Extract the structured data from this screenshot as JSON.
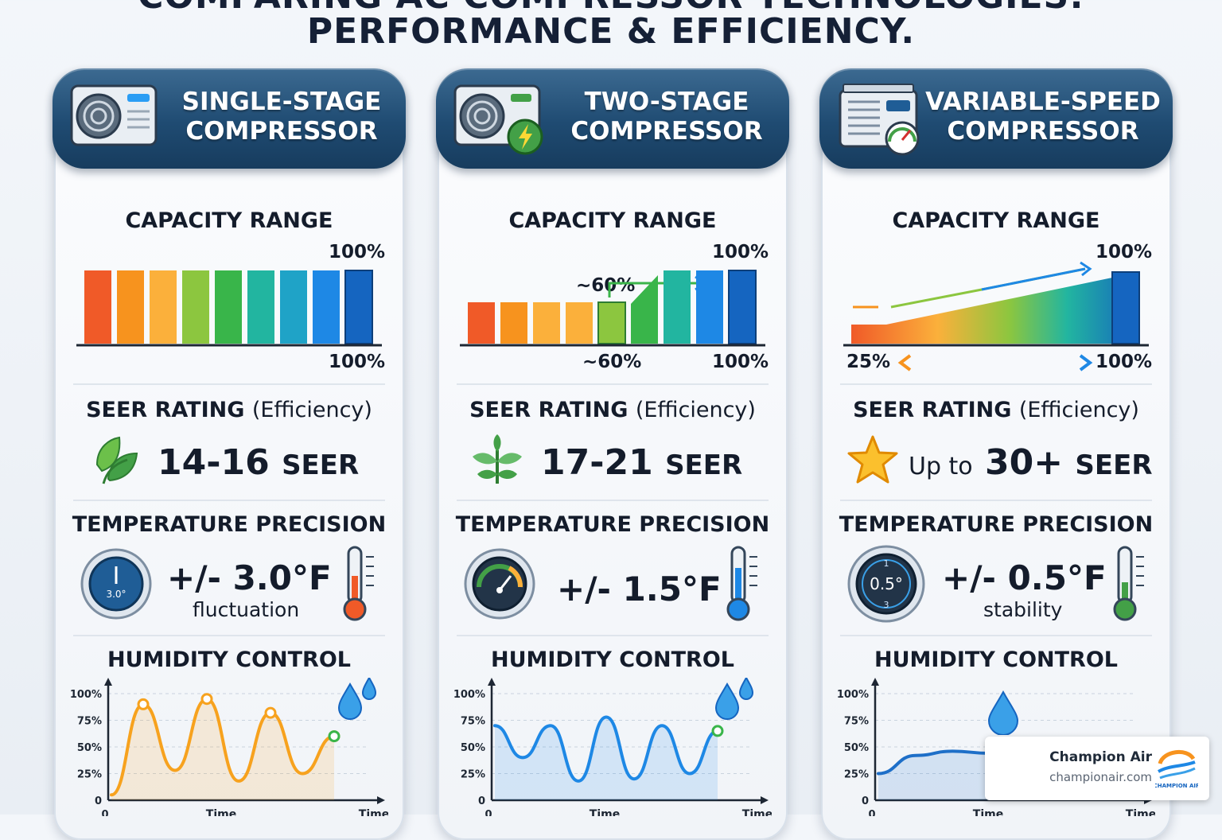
{
  "page": {
    "title_line1": "COMPARING AC COMPRESSOR TECHNOLOGIES:",
    "title_line2": "PERFORMANCE & EFFICIENCY."
  },
  "sections": {
    "capacity": "CAPACITY RANGE",
    "seer_bold": "SEER RATING",
    "seer_light": "(Efficiency)",
    "temperature": "TEMPERATURE PRECISION",
    "humidity": "HUMIDITY CONTROL"
  },
  "chart_axis": {
    "y_ticks": [
      "100%",
      "75%",
      "50%",
      "25%",
      "0"
    ],
    "x_start": "0",
    "x_mid": "Time",
    "x_end": "Time"
  },
  "cards": [
    {
      "title_line1": "SINGLE-STAGE",
      "title_line2": "COMPRESSOR",
      "capacity_top": "100%",
      "capacity_bottom": "100%",
      "seer_value": "14-16",
      "seer_unit": "SEER",
      "temp_value": "+/- 3.0°F",
      "temp_sub": "fluctuation",
      "gauge_label": "3.0°"
    },
    {
      "title_line1": "TWO-STAGE",
      "title_line2": "COMPRESSOR",
      "capacity_top": "100%",
      "capacity_mid": "~60%",
      "capacity_bottom_left": "~60%",
      "capacity_bottom": "100%",
      "seer_value": "17-21",
      "seer_unit": "SEER",
      "temp_value": "+/- 1.5°F"
    },
    {
      "title_line1": "VARIABLE-SPEED",
      "title_line2": "COMPRESSOR",
      "capacity_top": "100%",
      "capacity_bottom_left": "25%",
      "capacity_bottom": "100%",
      "seer_prefix": "Up to",
      "seer_value": "30+",
      "seer_unit": "SEER",
      "temp_value": "+/- 0.5°F",
      "temp_sub": "stability",
      "gauge_label": "0.5°",
      "gauge_top": "1",
      "gauge_bottom": "3"
    }
  ],
  "brand": {
    "name": "Champion Air",
    "url": "championair.com",
    "logo_text": "CHAMPION AIR"
  },
  "colors": {
    "header": "#1f4b72",
    "bar_gradient": [
      "#f05a28",
      "#f7931e",
      "#fbb03b",
      "#8cc63f",
      "#39b54a",
      "#22b5a0",
      "#1e88e5",
      "#1565c0"
    ],
    "curve_single": "#f7a21e",
    "curve_two": "#1e88e5",
    "curve_variable": "#1e6fc8"
  },
  "chart_data": [
    {
      "type": "line",
      "title": "HUMIDITY CONTROL",
      "series": [
        {
          "values": [
            5,
            90,
            28,
            95,
            18,
            82,
            25,
            60
          ]
        }
      ],
      "ylim": [
        0,
        100
      ],
      "y_ticks": [
        "100%",
        "75%",
        "50%",
        "25%",
        "0"
      ],
      "xlabel": "Time"
    },
    {
      "type": "line",
      "title": "HUMIDITY CONTROL",
      "series": [
        {
          "values": [
            70,
            40,
            70,
            18,
            78,
            20,
            70,
            25,
            65
          ]
        }
      ],
      "ylim": [
        0,
        100
      ],
      "y_ticks": [
        "100%",
        "75%",
        "50%",
        "25%",
        "0"
      ],
      "xlabel": "Time"
    },
    {
      "type": "line",
      "title": "HUMIDITY CONTROL",
      "series": [
        {
          "values": [
            25,
            42,
            46,
            44,
            44,
            44,
            44
          ]
        }
      ],
      "ylim": [
        0,
        100
      ],
      "y_ticks": [
        "100%",
        "75%",
        "50%",
        "25%",
        "0"
      ],
      "xlabel": "Time"
    }
  ]
}
